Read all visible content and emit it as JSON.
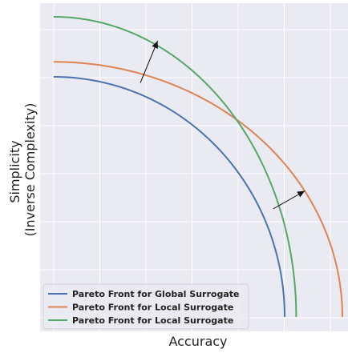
{
  "chart_data": {
    "type": "line",
    "title": "",
    "xlabel": "Accuracy",
    "ylabel": [
      "Simplicity",
      "(Inverse Complexity)"
    ],
    "xlim": [
      0,
      1
    ],
    "ylim": [
      0,
      1
    ],
    "grid": true,
    "tick_labels_visible": false,
    "legend_placement": "lower-left",
    "series": [
      {
        "name": "Pareto Front for Global Surrogate",
        "color": "#4c72b0",
        "shape": "quarter-ellipse",
        "x_max": 0.8,
        "y_max": 0.8
      },
      {
        "name": "Pareto Front for Local Surrogate",
        "color": "#dd8452",
        "shape": "quarter-ellipse",
        "x_max": 1.0,
        "y_max": 0.85
      },
      {
        "name": "Pareto Front for Local Surrogate",
        "color": "#55a868",
        "shape": "quarter-ellipse",
        "x_max": 0.84,
        "y_max": 1.0
      }
    ],
    "annotations": [
      {
        "type": "arrow",
        "from": [
          0.3,
          0.78
        ],
        "to": [
          0.36,
          0.92
        ]
      },
      {
        "type": "arrow",
        "from": [
          0.76,
          0.36
        ],
        "to": [
          0.87,
          0.42
        ]
      }
    ]
  }
}
